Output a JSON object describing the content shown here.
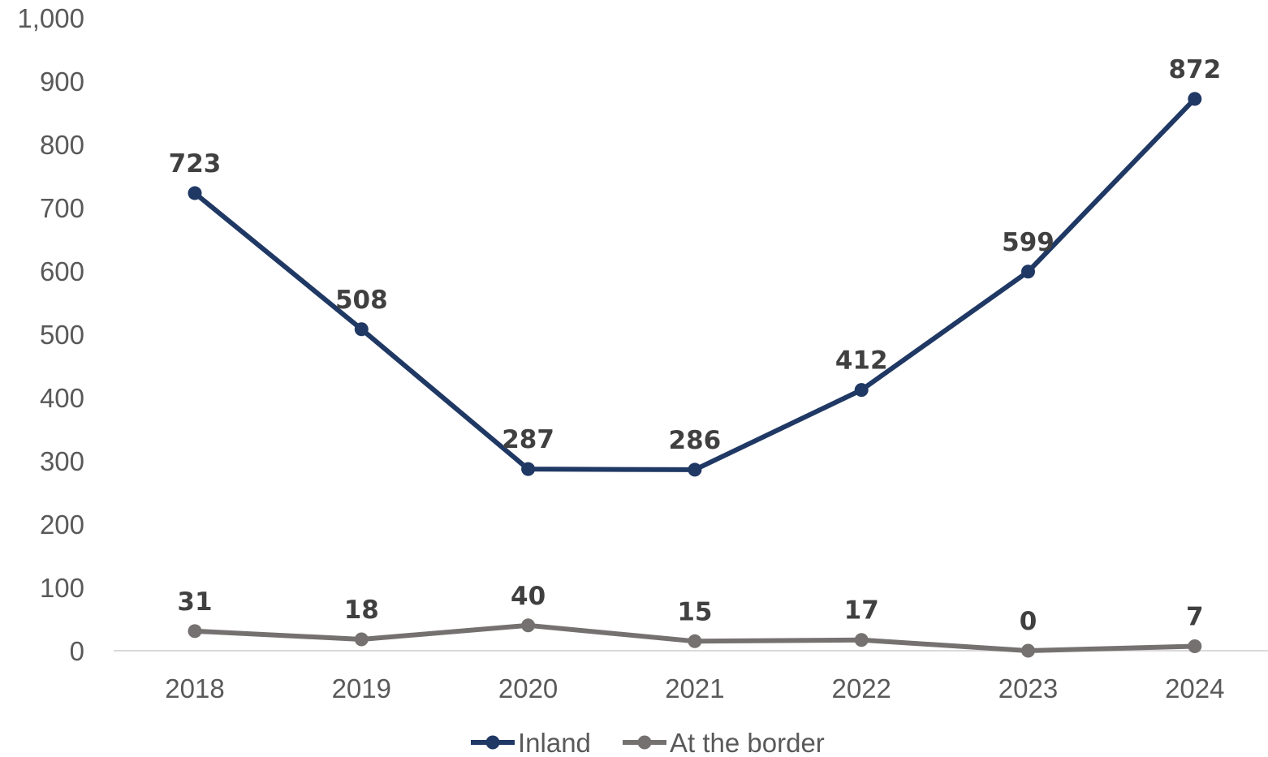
{
  "chart_data": {
    "type": "line",
    "categories": [
      "2018",
      "2019",
      "2020",
      "2021",
      "2022",
      "2023",
      "2024"
    ],
    "series": [
      {
        "name": "Inland",
        "values": [
          723,
          508,
          287,
          286,
          412,
          599,
          872
        ],
        "color": "#1f3864"
      },
      {
        "name": "At the border",
        "values": [
          31,
          18,
          40,
          15,
          17,
          0,
          7
        ],
        "color": "#767171"
      }
    ],
    "y_ticks": [
      "0",
      "100",
      "200",
      "300",
      "400",
      "500",
      "600",
      "700",
      "800",
      "900",
      "1,000"
    ],
    "ylim": [
      0,
      1000
    ],
    "grid": false,
    "data_labels": true,
    "legend": "bottom-center"
  }
}
